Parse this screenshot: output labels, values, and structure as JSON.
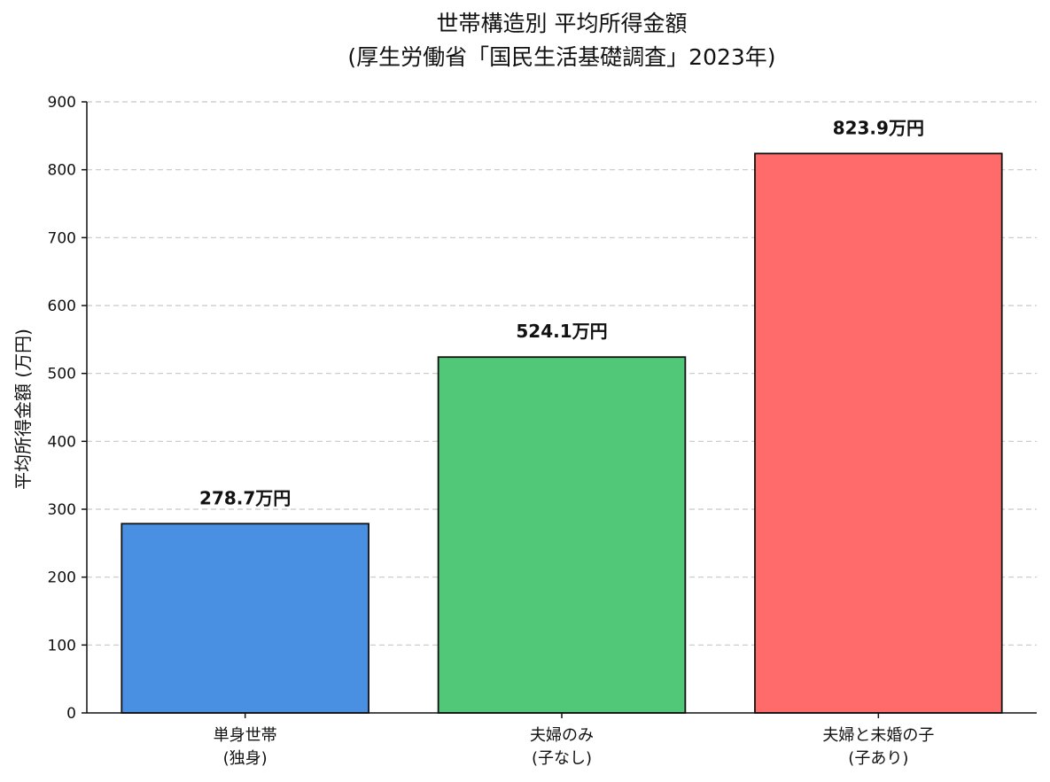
{
  "chart_data": {
    "type": "bar",
    "title": [
      "世帯構造別 平均所得金額",
      "(厚生労働省「国民生活基礎調査」2023年)"
    ],
    "xlabel": "",
    "ylabel": "平均所得金額 (万円)",
    "ylim": [
      0,
      900
    ],
    "yticks": [
      0,
      100,
      200,
      300,
      400,
      500,
      600,
      700,
      800,
      900
    ],
    "grid": "horizontal-dashed",
    "categories": [
      [
        "単身世帯",
        "(独身)"
      ],
      [
        "夫婦のみ",
        "(子なし)"
      ],
      [
        "夫婦と未婚の子",
        "(子あり)"
      ]
    ],
    "values": [
      278.7,
      524.1,
      823.9
    ],
    "value_labels": [
      "278.7万円",
      "524.1万円",
      "823.9万円"
    ],
    "colors": [
      "#4A90E2",
      "#50C878",
      "#FF6B6B"
    ]
  }
}
